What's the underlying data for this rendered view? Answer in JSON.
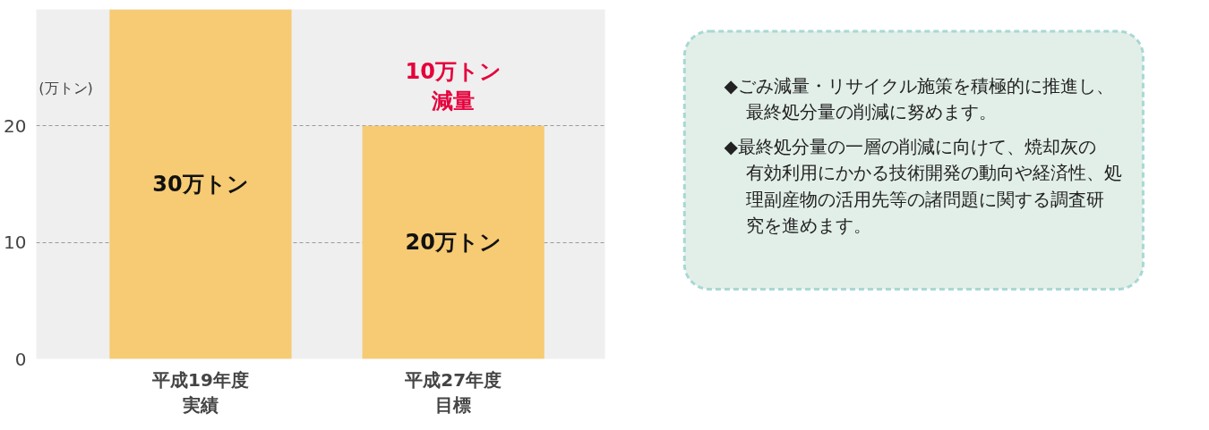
{
  "chart_data": [
    {
      "type": "bar",
      "categories": [
        "平成19年度実績",
        "平成27年度目標"
      ],
      "ylabel": "(万トン)",
      "ylim": [
        0,
        30
      ],
      "yticks": [
        0,
        10,
        20
      ],
      "grid": "y",
      "series": [
        {
          "color": "#f6cb74",
          "values": [
            30,
            20
          ],
          "value_labels": [
            "30万トン",
            "20万トン"
          ]
        }
      ],
      "annotations": [
        "10万トン減量"
      ]
    },
    {
      "type": "other",
      "annotations": [
        "◆ごみ減量・リサイクル施策を積極的に推進し、最終処分量の削減に努めます。",
        "◆最終処分量の一層の削減に向けて、焼却灰の有効利用にかかる技術開発の動向や経済性、処理副産物の活用先等の諸問題に関する調査研究を進めます。"
      ]
    }
  ]
}
